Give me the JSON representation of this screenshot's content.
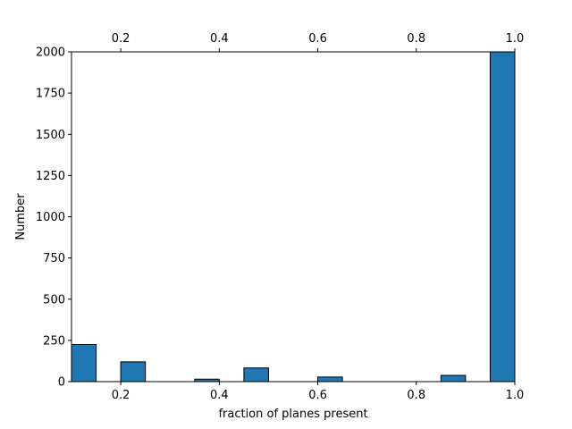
{
  "chart_data": {
    "type": "bar",
    "title": "",
    "xlabel": "fraction of planes present",
    "ylabel": "Number",
    "xlim": [
      0.1,
      1.0
    ],
    "ylim": [
      0,
      2000
    ],
    "bin_width": 0.05,
    "bars": [
      {
        "x0": 0.1,
        "x1": 0.15,
        "value": 225
      },
      {
        "x0": 0.2,
        "x1": 0.25,
        "value": 120
      },
      {
        "x0": 0.35,
        "x1": 0.4,
        "value": 15
      },
      {
        "x0": 0.45,
        "x1": 0.5,
        "value": 83
      },
      {
        "x0": 0.6,
        "x1": 0.65,
        "value": 28
      },
      {
        "x0": 0.85,
        "x1": 0.9,
        "value": 38
      },
      {
        "x0": 0.95,
        "x1": 1.0,
        "value": 2000
      }
    ],
    "x_ticks": [
      {
        "value": 0.2,
        "label": "0.2"
      },
      {
        "value": 0.4,
        "label": "0.4"
      },
      {
        "value": 0.6,
        "label": "0.6"
      },
      {
        "value": 0.8,
        "label": "0.8"
      },
      {
        "value": 1.0,
        "label": "1.0"
      }
    ],
    "top_x_ticks": [
      {
        "value": 0.2,
        "label": "0.2"
      },
      {
        "value": 0.4,
        "label": "0.4"
      },
      {
        "value": 0.6,
        "label": "0.6"
      },
      {
        "value": 0.8,
        "label": "0.8"
      },
      {
        "value": 1.0,
        "label": "1.0"
      }
    ],
    "y_ticks": [
      {
        "value": 0,
        "label": "0"
      },
      {
        "value": 250,
        "label": "250"
      },
      {
        "value": 500,
        "label": "500"
      },
      {
        "value": 750,
        "label": "750"
      },
      {
        "value": 1000,
        "label": "1000"
      },
      {
        "value": 1250,
        "label": "1250"
      },
      {
        "value": 1500,
        "label": "1500"
      },
      {
        "value": 1750,
        "label": "1750"
      },
      {
        "value": 2000,
        "label": "2000"
      }
    ],
    "bar_color": "#1f77b4",
    "edge_color": "#000000",
    "grid": false,
    "legend": "none"
  }
}
